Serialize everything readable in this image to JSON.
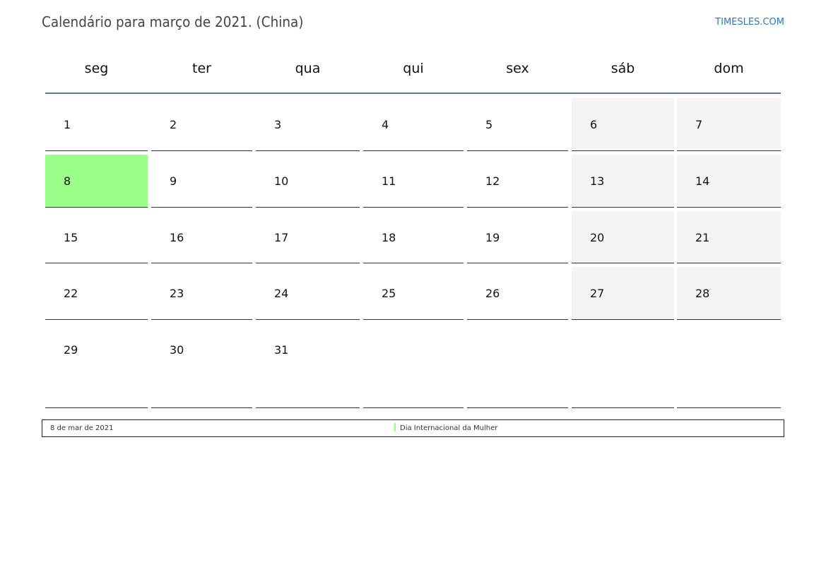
{
  "header": {
    "title": "Calendário para março de 2021. (China)",
    "brand": "TIMESLES.COM"
  },
  "weekdays": [
    "seg",
    "ter",
    "qua",
    "qui",
    "sex",
    "sáb",
    "dom"
  ],
  "weeks": [
    [
      "1",
      "2",
      "3",
      "4",
      "5",
      "6",
      "7"
    ],
    [
      "8",
      "9",
      "10",
      "11",
      "12",
      "13",
      "14"
    ],
    [
      "15",
      "16",
      "17",
      "18",
      "19",
      "20",
      "21"
    ],
    [
      "22",
      "23",
      "24",
      "25",
      "26",
      "27",
      "28"
    ],
    [
      "29",
      "30",
      "31",
      "",
      "",
      "",
      ""
    ]
  ],
  "holidays": [
    {
      "day": "8",
      "date_label": "8 de mar de 2021",
      "name": "Dia Internacional da Mulher",
      "color": "#99ff88"
    }
  ],
  "colors": {
    "weekend": "#f4f4f4",
    "header_line": "#5a78a0",
    "brand": "#2a7ac0"
  }
}
